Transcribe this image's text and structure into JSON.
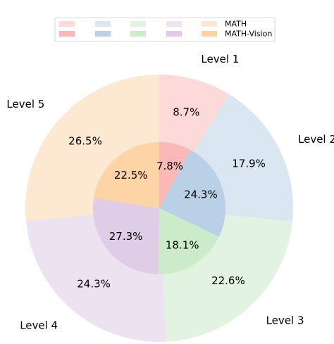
{
  "chart_data": {
    "type": "pie",
    "categories": [
      "Level 1",
      "Level 2",
      "Level 3",
      "Level 4",
      "Level 5"
    ],
    "series": [
      {
        "name": "MATH",
        "ring": "outer",
        "values": [
          8.7,
          17.9,
          22.6,
          24.3,
          26.5
        ],
        "labels": [
          "8.7%",
          "17.9%",
          "22.6%",
          "24.3%",
          "26.5%"
        ]
      },
      {
        "name": "MATH-Vision",
        "ring": "inner",
        "values": [
          7.8,
          24.3,
          18.1,
          27.3,
          22.5
        ],
        "labels": [
          "7.8%",
          "24.3%",
          "18.1%",
          "27.3%",
          "22.5%"
        ]
      }
    ],
    "colors": {
      "outer": [
        "#fed9d9",
        "#dae7f2",
        "#e2f3e1",
        "#ede2f0",
        "#fde9d2"
      ],
      "inner": [
        "#fcb7b7",
        "#b9d0e6",
        "#ccebc8",
        "#dfcde8",
        "#fdd4a6"
      ]
    },
    "legend": {
      "placement": "top-center",
      "columns": 5
    },
    "start_angle_deg": 90,
    "direction": "clockwise"
  }
}
